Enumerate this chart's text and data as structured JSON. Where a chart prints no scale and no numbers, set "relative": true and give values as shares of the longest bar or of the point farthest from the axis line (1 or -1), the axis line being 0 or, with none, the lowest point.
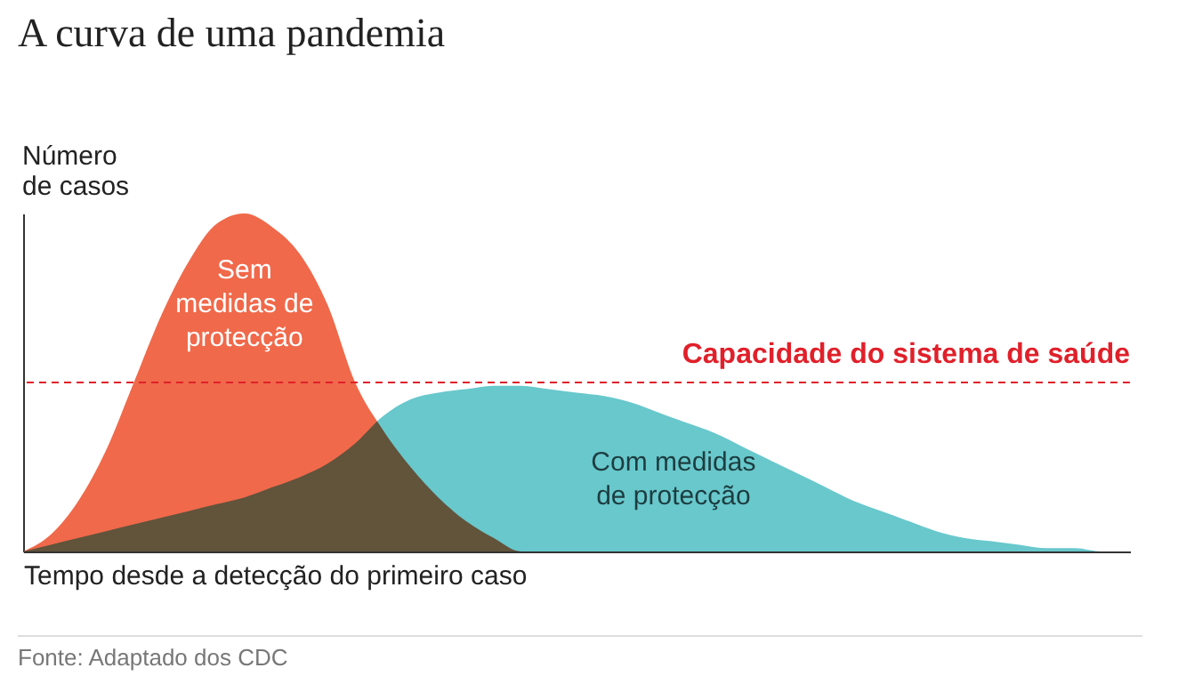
{
  "chart_data": {
    "type": "area",
    "title": "A curva de uma pandemia",
    "xlabel": "Tempo desde a detecção do primeiro caso",
    "ylabel": "Número de casos",
    "relative": true,
    "categories": [
      null,
      null,
      null,
      null,
      null,
      null,
      null,
      null,
      null,
      null,
      null,
      null,
      null,
      null,
      null,
      null,
      null,
      null,
      null,
      null,
      null,
      null,
      null,
      null,
      null,
      null,
      null,
      null,
      null,
      null,
      null,
      null,
      null,
      null,
      null,
      null,
      null,
      null,
      null,
      null,
      null
    ],
    "series": [
      {
        "name": "Com medidas de protecção",
        "color": "#4dbec3",
        "values": [
          0,
          0.02,
          0.04,
          0.06,
          0.08,
          0.1,
          0.12,
          0.14,
          0.16,
          0.19,
          0.22,
          0.26,
          0.32,
          0.4,
          0.45,
          0.47,
          0.48,
          0.49,
          0.49,
          0.48,
          0.47,
          0.46,
          0.44,
          0.41,
          0.38,
          0.35,
          0.31,
          0.27,
          0.23,
          0.19,
          0.15,
          0.12,
          0.09,
          0.06,
          0.04,
          0.03,
          0.02,
          0.01,
          0.01,
          0,
          0
        ]
      },
      {
        "name": "Sem medidas de protecção",
        "color": "#f0694a",
        "values": [
          0,
          0.05,
          0.15,
          0.3,
          0.5,
          0.7,
          0.86,
          0.97,
          1,
          0.96,
          0.88,
          0.73,
          0.5,
          0.36,
          0.25,
          0.16,
          0.09,
          0.04,
          0,
          0,
          0,
          0,
          0,
          0,
          0,
          0,
          0,
          0,
          0,
          0,
          0,
          0,
          0,
          0,
          0,
          0,
          0,
          0,
          0,
          0,
          0
        ]
      }
    ],
    "ref_lines": [
      {
        "axis": "y",
        "value": 0.5,
        "label": "Capacidade do sistema de saúde",
        "color": "#e0202a",
        "line_style": "dashed"
      }
    ],
    "annotations": [
      "Fonte: Adaptado dos CDC"
    ]
  }
}
